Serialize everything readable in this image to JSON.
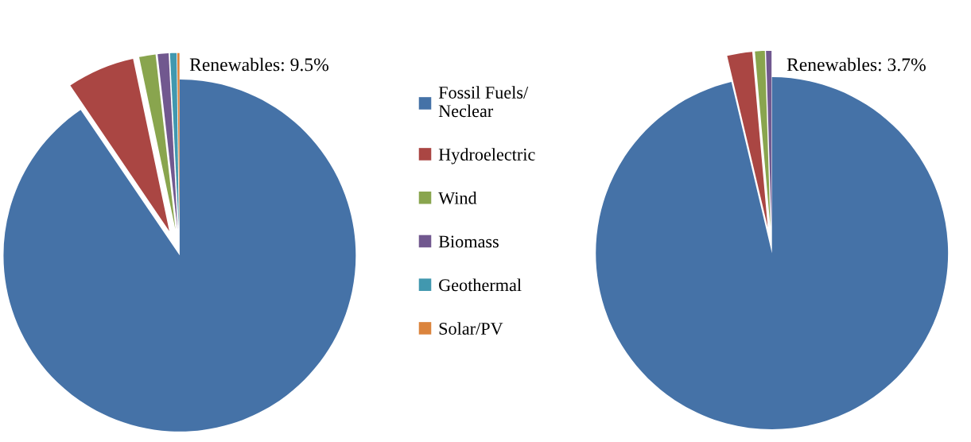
{
  "chart_data": [
    {
      "type": "pie",
      "categories": [
        "Fossil Fuels/\nNeclear",
        "Hydroelectric",
        "Wind",
        "Biomass",
        "Geothermal",
        "Solar/PV"
      ],
      "values": [
        90.5,
        6.2,
        1.5,
        1.0,
        0.6,
        0.2
      ],
      "colors": [
        "#4572a7",
        "#aa4643",
        "#89a54e",
        "#71588f",
        "#4198af",
        "#db843d"
      ],
      "annotations": [
        "Renewables: 9.5%"
      ],
      "legend": "right"
    },
    {
      "type": "pie",
      "categories": [
        null,
        null,
        null,
        null
      ],
      "values": [
        96.3,
        2.3,
        0.9,
        0.5
      ],
      "colors": [
        "#4572a7",
        "#aa4643",
        "#89a54e",
        "#71588f"
      ],
      "annotations": [
        "Renewables: 3.7%"
      ],
      "legend": false
    }
  ]
}
